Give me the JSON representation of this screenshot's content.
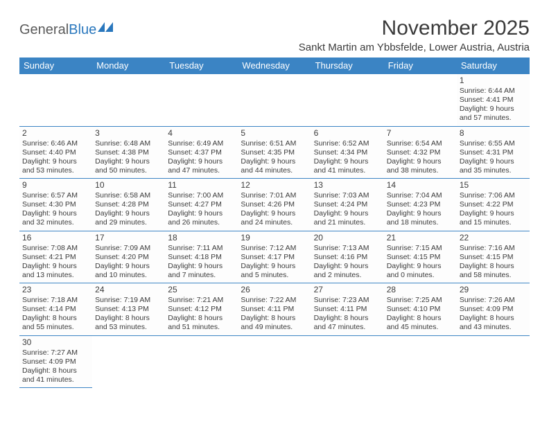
{
  "logo": {
    "text1": "General",
    "text2": "Blue"
  },
  "header": {
    "month_title": "November 2025",
    "location": "Sankt Martin am Ybbsfelde, Lower Austria, Austria"
  },
  "colors": {
    "header_bg": "#3b84c4",
    "header_fg": "#ffffff",
    "cell_border": "#3b84c4",
    "text": "#3a3a3a",
    "logo_gray": "#5a5a5a",
    "logo_blue": "#2977bd"
  },
  "weekdays": [
    "Sunday",
    "Monday",
    "Tuesday",
    "Wednesday",
    "Thursday",
    "Friday",
    "Saturday"
  ],
  "weeks": [
    [
      null,
      null,
      null,
      null,
      null,
      null,
      {
        "d": "1",
        "sr": "Sunrise: 6:44 AM",
        "ss": "Sunset: 4:41 PM",
        "dl1": "Daylight: 9 hours",
        "dl2": "and 57 minutes."
      }
    ],
    [
      {
        "d": "2",
        "sr": "Sunrise: 6:46 AM",
        "ss": "Sunset: 4:40 PM",
        "dl1": "Daylight: 9 hours",
        "dl2": "and 53 minutes."
      },
      {
        "d": "3",
        "sr": "Sunrise: 6:48 AM",
        "ss": "Sunset: 4:38 PM",
        "dl1": "Daylight: 9 hours",
        "dl2": "and 50 minutes."
      },
      {
        "d": "4",
        "sr": "Sunrise: 6:49 AM",
        "ss": "Sunset: 4:37 PM",
        "dl1": "Daylight: 9 hours",
        "dl2": "and 47 minutes."
      },
      {
        "d": "5",
        "sr": "Sunrise: 6:51 AM",
        "ss": "Sunset: 4:35 PM",
        "dl1": "Daylight: 9 hours",
        "dl2": "and 44 minutes."
      },
      {
        "d": "6",
        "sr": "Sunrise: 6:52 AM",
        "ss": "Sunset: 4:34 PM",
        "dl1": "Daylight: 9 hours",
        "dl2": "and 41 minutes."
      },
      {
        "d": "7",
        "sr": "Sunrise: 6:54 AM",
        "ss": "Sunset: 4:32 PM",
        "dl1": "Daylight: 9 hours",
        "dl2": "and 38 minutes."
      },
      {
        "d": "8",
        "sr": "Sunrise: 6:55 AM",
        "ss": "Sunset: 4:31 PM",
        "dl1": "Daylight: 9 hours",
        "dl2": "and 35 minutes."
      }
    ],
    [
      {
        "d": "9",
        "sr": "Sunrise: 6:57 AM",
        "ss": "Sunset: 4:30 PM",
        "dl1": "Daylight: 9 hours",
        "dl2": "and 32 minutes."
      },
      {
        "d": "10",
        "sr": "Sunrise: 6:58 AM",
        "ss": "Sunset: 4:28 PM",
        "dl1": "Daylight: 9 hours",
        "dl2": "and 29 minutes."
      },
      {
        "d": "11",
        "sr": "Sunrise: 7:00 AM",
        "ss": "Sunset: 4:27 PM",
        "dl1": "Daylight: 9 hours",
        "dl2": "and 26 minutes."
      },
      {
        "d": "12",
        "sr": "Sunrise: 7:01 AM",
        "ss": "Sunset: 4:26 PM",
        "dl1": "Daylight: 9 hours",
        "dl2": "and 24 minutes."
      },
      {
        "d": "13",
        "sr": "Sunrise: 7:03 AM",
        "ss": "Sunset: 4:24 PM",
        "dl1": "Daylight: 9 hours",
        "dl2": "and 21 minutes."
      },
      {
        "d": "14",
        "sr": "Sunrise: 7:04 AM",
        "ss": "Sunset: 4:23 PM",
        "dl1": "Daylight: 9 hours",
        "dl2": "and 18 minutes."
      },
      {
        "d": "15",
        "sr": "Sunrise: 7:06 AM",
        "ss": "Sunset: 4:22 PM",
        "dl1": "Daylight: 9 hours",
        "dl2": "and 15 minutes."
      }
    ],
    [
      {
        "d": "16",
        "sr": "Sunrise: 7:08 AM",
        "ss": "Sunset: 4:21 PM",
        "dl1": "Daylight: 9 hours",
        "dl2": "and 13 minutes."
      },
      {
        "d": "17",
        "sr": "Sunrise: 7:09 AM",
        "ss": "Sunset: 4:20 PM",
        "dl1": "Daylight: 9 hours",
        "dl2": "and 10 minutes."
      },
      {
        "d": "18",
        "sr": "Sunrise: 7:11 AM",
        "ss": "Sunset: 4:18 PM",
        "dl1": "Daylight: 9 hours",
        "dl2": "and 7 minutes."
      },
      {
        "d": "19",
        "sr": "Sunrise: 7:12 AM",
        "ss": "Sunset: 4:17 PM",
        "dl1": "Daylight: 9 hours",
        "dl2": "and 5 minutes."
      },
      {
        "d": "20",
        "sr": "Sunrise: 7:13 AM",
        "ss": "Sunset: 4:16 PM",
        "dl1": "Daylight: 9 hours",
        "dl2": "and 2 minutes."
      },
      {
        "d": "21",
        "sr": "Sunrise: 7:15 AM",
        "ss": "Sunset: 4:15 PM",
        "dl1": "Daylight: 9 hours",
        "dl2": "and 0 minutes."
      },
      {
        "d": "22",
        "sr": "Sunrise: 7:16 AM",
        "ss": "Sunset: 4:15 PM",
        "dl1": "Daylight: 8 hours",
        "dl2": "and 58 minutes."
      }
    ],
    [
      {
        "d": "23",
        "sr": "Sunrise: 7:18 AM",
        "ss": "Sunset: 4:14 PM",
        "dl1": "Daylight: 8 hours",
        "dl2": "and 55 minutes."
      },
      {
        "d": "24",
        "sr": "Sunrise: 7:19 AM",
        "ss": "Sunset: 4:13 PM",
        "dl1": "Daylight: 8 hours",
        "dl2": "and 53 minutes."
      },
      {
        "d": "25",
        "sr": "Sunrise: 7:21 AM",
        "ss": "Sunset: 4:12 PM",
        "dl1": "Daylight: 8 hours",
        "dl2": "and 51 minutes."
      },
      {
        "d": "26",
        "sr": "Sunrise: 7:22 AM",
        "ss": "Sunset: 4:11 PM",
        "dl1": "Daylight: 8 hours",
        "dl2": "and 49 minutes."
      },
      {
        "d": "27",
        "sr": "Sunrise: 7:23 AM",
        "ss": "Sunset: 4:11 PM",
        "dl1": "Daylight: 8 hours",
        "dl2": "and 47 minutes."
      },
      {
        "d": "28",
        "sr": "Sunrise: 7:25 AM",
        "ss": "Sunset: 4:10 PM",
        "dl1": "Daylight: 8 hours",
        "dl2": "and 45 minutes."
      },
      {
        "d": "29",
        "sr": "Sunrise: 7:26 AM",
        "ss": "Sunset: 4:09 PM",
        "dl1": "Daylight: 8 hours",
        "dl2": "and 43 minutes."
      }
    ],
    [
      {
        "d": "30",
        "sr": "Sunrise: 7:27 AM",
        "ss": "Sunset: 4:09 PM",
        "dl1": "Daylight: 8 hours",
        "dl2": "and 41 minutes."
      },
      null,
      null,
      null,
      null,
      null,
      null
    ]
  ]
}
